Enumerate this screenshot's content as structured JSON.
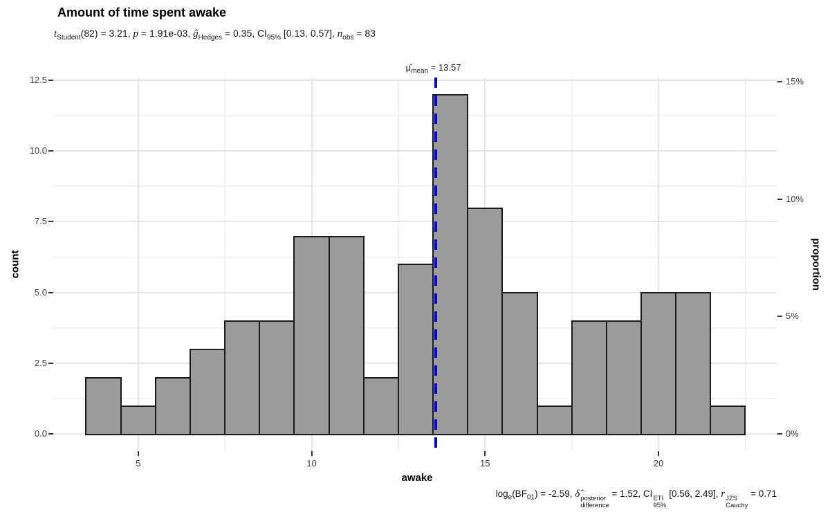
{
  "chart_data": {
    "type": "bar",
    "subtype": "histogram",
    "title": "Amount of time spent awake",
    "subtitle_html": "<i>t</i><sub>Student</sub>(82) = 3.21, <i>p</i> = 1.91e-03, <i>ĝ</i><sub>Hedges</sub> = 0.35, CI<sub>95%</sub> [0.13, 0.57], <i>n</i><sub>obs</sub> = 83",
    "caption_html": "log<sub>e</sub>(BF<sub>01</sub>) = -2.59, <i>δ̂</i><span class=\"stk\"><span>posterior</span><span>difference</span></span> = 1.52, CI<span class=\"stk\"><span>ETI</span><span>95%</span></span> [0.56, 2.49], <i>r</i><span class=\"stk\"><span>JZS</span><span>Cauchy</span></span> = 0.71",
    "xlabel": "awake",
    "ylabel_left": "count",
    "ylabel_right": "proportion",
    "n_obs": 83,
    "bin_start": 3.5,
    "bin_width": 1,
    "counts": [
      2,
      1,
      2,
      3,
      4,
      4,
      7,
      7,
      2,
      6,
      12,
      8,
      5,
      1,
      4,
      4,
      5,
      5,
      1
    ],
    "x_ticks": [
      5,
      10,
      15,
      20
    ],
    "x_tick_labels": [
      "5",
      "10",
      "15",
      "20"
    ],
    "y_ticks_left": [
      0,
      2.5,
      5,
      7.5,
      10,
      12.5
    ],
    "y_tick_labels_left": [
      "0.0",
      "2.5",
      "5.0",
      "7.5",
      "10.0",
      "12.5"
    ],
    "y_ticks_right_counts": [
      0,
      4.15,
      8.3,
      12.45
    ],
    "y_tick_labels_right": [
      "0%",
      "5%",
      "10%",
      "15%"
    ],
    "xlim": [
      2.55,
      23.45
    ],
    "ylim": [
      -0.6,
      12.6
    ],
    "grid": {
      "x_minor": [
        7.5,
        12.5,
        17.5,
        22.5
      ],
      "y_minor": [
        1.25,
        3.75,
        6.25,
        8.75,
        11.25
      ],
      "major_on": true
    },
    "legend": "none",
    "mean_line": {
      "x": 13.57,
      "label_html": "μ̂<sub>mean</sub> = 13.57",
      "color": "#0000F0"
    },
    "colors": {
      "bar_fill": "#9b9b9b",
      "bar_stroke": "#1a1a1a",
      "grid_major": "#e4e4e4",
      "grid_minor": "#f1f1f1",
      "tick": "#333333",
      "tick_text": "#3d3d3d"
    }
  }
}
